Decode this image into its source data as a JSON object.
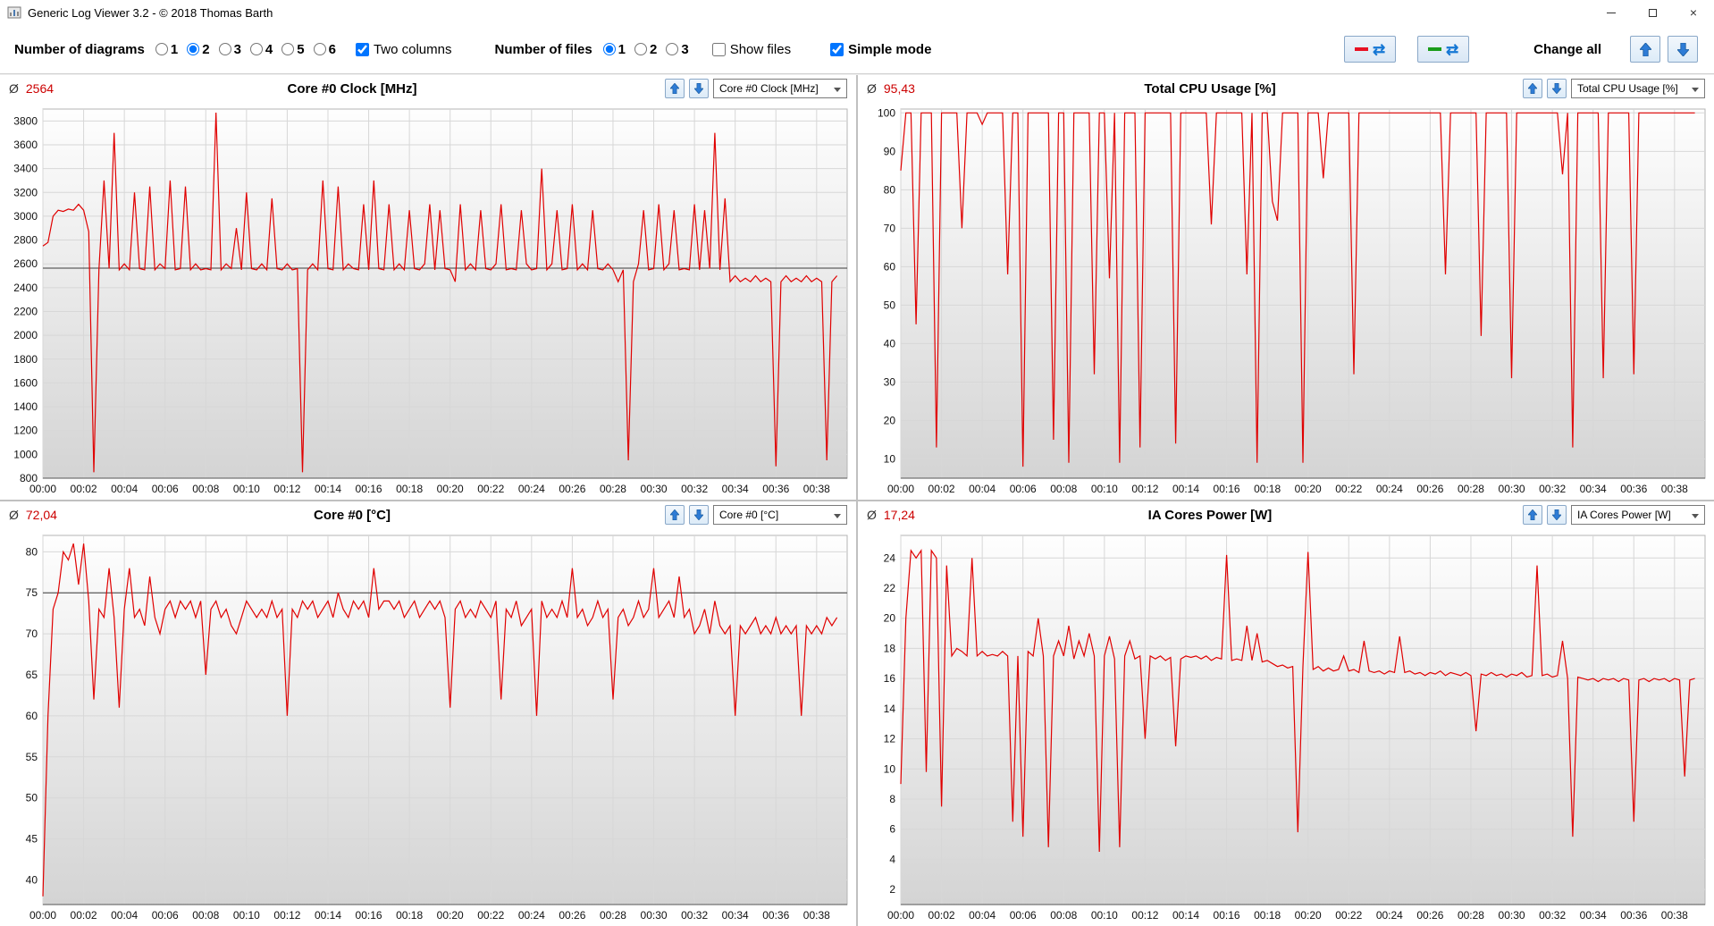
{
  "window": {
    "title": "Generic Log Viewer 3.2 - © 2018 Thomas Barth",
    "minimize_glyph": "–",
    "close_glyph": "×"
  },
  "toolbar": {
    "diagrams_label": "Number of diagrams",
    "diagram_options": [
      "1",
      "2",
      "3",
      "4",
      "5",
      "6"
    ],
    "diagrams_selected": "2",
    "two_columns_label": "Two columns",
    "two_columns_checked": true,
    "files_label": "Number of files",
    "file_options": [
      "1",
      "2",
      "3"
    ],
    "files_selected": "1",
    "show_files_label": "Show files",
    "show_files_checked": false,
    "simple_mode_label": "Simple mode",
    "simple_mode_checked": true,
    "change_all_label": "Change all",
    "refresh_glyph": "⇄"
  },
  "panel": {
    "avg_symbol": "Ø"
  },
  "colors": {
    "line": "#e00000",
    "avg_value": "#cc0000",
    "grid": "#d7d7d7",
    "marker_line": "#3c3c3c",
    "red_dash": "#e81123",
    "green_dash": "#1a9c1a",
    "arrow_blue": "#2e7cd6",
    "arrow_blue_dark": "#1a5c9e",
    "plot_grad_top": "#fefefe",
    "plot_grad_bottom": "#d4d4d4"
  },
  "chart_data": {
    "type": "line",
    "x_axis": {
      "tick_minutes": [
        0,
        2,
        4,
        6,
        8,
        10,
        12,
        14,
        16,
        18,
        20,
        22,
        24,
        26,
        28,
        30,
        32,
        34,
        36,
        38
      ],
      "tick_labels": [
        "00:00",
        "00:02",
        "00:04",
        "00:06",
        "00:08",
        "00:10",
        "00:12",
        "00:14",
        "00:16",
        "00:18",
        "00:20",
        "00:22",
        "00:24",
        "00:26",
        "00:28",
        "00:30",
        "00:32",
        "00:34",
        "00:36",
        "00:38"
      ],
      "range_minutes": [
        0,
        39.5
      ],
      "sample_interval_seconds": 15
    },
    "charts": [
      {
        "id": "core0-clock",
        "title": "Core #0 Clock [MHz]",
        "average_label": "2564",
        "combo_value": "Core #0 Clock [MHz]",
        "ylabel": "MHz",
        "ylim": [
          800,
          3900
        ],
        "yticks": [
          800,
          1000,
          1200,
          1400,
          1600,
          1800,
          2000,
          2200,
          2400,
          2600,
          2800,
          3000,
          3200,
          3400,
          3600,
          3800
        ],
        "marker_line": 2564,
        "values": [
          2750,
          2780,
          3000,
          3050,
          3040,
          3060,
          3050,
          3100,
          3050,
          2870,
          850,
          2550,
          3300,
          2560,
          3700,
          2550,
          2600,
          2550,
          3200,
          2560,
          2550,
          3250,
          2550,
          2600,
          2560,
          3300,
          2550,
          2560,
          3250,
          2550,
          2600,
          2550,
          2560,
          2550,
          3870,
          2550,
          2600,
          2560,
          2900,
          2550,
          3200,
          2560,
          2550,
          2600,
          2550,
          3150,
          2560,
          2550,
          2600,
          2550,
          2560,
          850,
          2550,
          2600,
          2550,
          3300,
          2560,
          2550,
          3250,
          2550,
          2600,
          2560,
          2550,
          3100,
          2550,
          3300,
          2560,
          2550,
          3100,
          2550,
          2600,
          2550,
          3050,
          2560,
          2550,
          2600,
          3100,
          2550,
          3050,
          2560,
          2550,
          2450,
          3100,
          2550,
          2600,
          2550,
          3050,
          2560,
          2550,
          2600,
          3100,
          2550,
          2560,
          2550,
          3050,
          2600,
          2550,
          2560,
          3400,
          2550,
          2600,
          3050,
          2550,
          2560,
          3100,
          2550,
          2600,
          2550,
          3050,
          2560,
          2550,
          2600,
          2550,
          2450,
          2550,
          950,
          2450,
          2600,
          3050,
          2550,
          2560,
          3100,
          2550,
          2600,
          3050,
          2550,
          2560,
          2550,
          3100,
          2550,
          3050,
          2560,
          3700,
          2550,
          3150,
          2450,
          2500,
          2450,
          2480,
          2450,
          2500,
          2450,
          2480,
          2450,
          900,
          2450,
          2500,
          2450,
          2480,
          2450,
          2500,
          2450,
          2480,
          2450,
          950,
          2450,
          2500
        ]
      },
      {
        "id": "total-cpu-usage",
        "title": "Total CPU Usage [%]",
        "average_label": "95,43",
        "combo_value": "Total CPU Usage [%]",
        "ylabel": "%",
        "ylim": [
          5,
          101
        ],
        "yticks": [
          10,
          20,
          30,
          40,
          50,
          60,
          70,
          80,
          90,
          100
        ],
        "marker_line": null,
        "values": [
          85,
          100,
          100,
          45,
          100,
          100,
          100,
          13,
          100,
          100,
          100,
          100,
          70,
          100,
          100,
          100,
          97,
          100,
          100,
          100,
          100,
          58,
          100,
          100,
          8,
          100,
          100,
          100,
          100,
          100,
          15,
          100,
          100,
          9,
          100,
          100,
          100,
          100,
          32,
          100,
          100,
          57,
          100,
          9,
          100,
          100,
          100,
          13,
          100,
          100,
          100,
          100,
          100,
          100,
          14,
          100,
          100,
          100,
          100,
          100,
          100,
          71,
          100,
          100,
          100,
          100,
          100,
          100,
          58,
          100,
          9,
          100,
          100,
          77,
          72,
          100,
          100,
          100,
          100,
          9,
          100,
          100,
          100,
          83,
          100,
          100,
          100,
          100,
          100,
          32,
          100,
          100,
          100,
          100,
          100,
          100,
          100,
          100,
          100,
          100,
          100,
          100,
          100,
          100,
          100,
          100,
          100,
          58,
          100,
          100,
          100,
          100,
          100,
          100,
          42,
          100,
          100,
          100,
          100,
          100,
          31,
          100,
          100,
          100,
          100,
          100,
          100,
          100,
          100,
          100,
          84,
          100,
          13,
          100,
          100,
          100,
          100,
          100,
          31,
          100,
          100,
          100,
          100,
          100,
          32,
          100,
          100,
          100,
          100,
          100,
          100,
          100,
          100,
          100,
          100,
          100,
          100
        ]
      },
      {
        "id": "core0-temp",
        "title": "Core #0 [°C]",
        "average_label": "72,04",
        "combo_value": "Core #0 [°C]",
        "ylabel": "°C",
        "ylim": [
          37,
          82
        ],
        "yticks": [
          40,
          45,
          50,
          55,
          60,
          65,
          70,
          75,
          80
        ],
        "marker_line": 75,
        "values": [
          38,
          60,
          73,
          75,
          80,
          79,
          81,
          76,
          81,
          74,
          62,
          73,
          72,
          78,
          72,
          61,
          73,
          78,
          72,
          73,
          71,
          77,
          72,
          70,
          73,
          74,
          72,
          74,
          73,
          74,
          72,
          74,
          65,
          73,
          74,
          72,
          73,
          71,
          70,
          72,
          74,
          73,
          72,
          73,
          72,
          74,
          72,
          73,
          60,
          73,
          72,
          74,
          73,
          74,
          72,
          73,
          74,
          72,
          75,
          73,
          72,
          74,
          73,
          74,
          72,
          78,
          73,
          74,
          74,
          73,
          74,
          72,
          73,
          74,
          72,
          73,
          74,
          73,
          74,
          72,
          61,
          73,
          74,
          72,
          73,
          72,
          74,
          73,
          72,
          74,
          62,
          73,
          72,
          74,
          71,
          72,
          73,
          60,
          74,
          72,
          73,
          72,
          74,
          72,
          78,
          72,
          73,
          71,
          72,
          74,
          72,
          73,
          62,
          72,
          73,
          71,
          72,
          74,
          72,
          73,
          78,
          72,
          73,
          74,
          72,
          77,
          72,
          73,
          70,
          71,
          73,
          70,
          74,
          71,
          70,
          71,
          60,
          71,
          70,
          71,
          72,
          70,
          71,
          70,
          72,
          70,
          71,
          70,
          71,
          60,
          71,
          70,
          71,
          70,
          72,
          71,
          72
        ]
      },
      {
        "id": "ia-cores-power",
        "title": "IA Cores Power [W]",
        "average_label": "17,24",
        "combo_value": "IA Cores Power [W]",
        "ylabel": "W",
        "ylim": [
          1,
          25.5
        ],
        "yticks": [
          2,
          4,
          6,
          8,
          10,
          12,
          14,
          16,
          18,
          20,
          22,
          24
        ],
        "marker_line": null,
        "values": [
          9,
          20,
          24.5,
          24,
          24.5,
          9.8,
          24.5,
          24,
          7.5,
          23.5,
          17.5,
          18,
          17.8,
          17.5,
          24,
          17.5,
          17.8,
          17.5,
          17.6,
          17.5,
          17.8,
          17.5,
          6.5,
          17.5,
          5.5,
          17.8,
          17.5,
          20,
          17.5,
          4.8,
          17.5,
          18.5,
          17.5,
          19.5,
          17.3,
          18.5,
          17.5,
          19,
          17.5,
          4.5,
          17.5,
          18.8,
          17.3,
          4.8,
          17.5,
          18.5,
          17.3,
          17.5,
          12,
          17.5,
          17.3,
          17.5,
          17.2,
          17.4,
          11.5,
          17.3,
          17.5,
          17.4,
          17.5,
          17.3,
          17.5,
          17.2,
          17.4,
          17.3,
          24.2,
          17.2,
          17.3,
          17.2,
          19.5,
          17.2,
          19,
          17.1,
          17.2,
          17,
          16.8,
          16.9,
          16.7,
          16.8,
          5.8,
          16.8,
          24.4,
          16.6,
          16.8,
          16.5,
          16.7,
          16.5,
          16.6,
          17.5,
          16.5,
          16.6,
          16.4,
          18.5,
          16.5,
          16.4,
          16.5,
          16.3,
          16.5,
          16.4,
          18.8,
          16.4,
          16.5,
          16.3,
          16.4,
          16.2,
          16.4,
          16.3,
          16.5,
          16.2,
          16.4,
          16.3,
          16.2,
          16.4,
          16.2,
          12.5,
          16.3,
          16.2,
          16.4,
          16.2,
          16.3,
          16.1,
          16.3,
          16.2,
          16.4,
          16.1,
          16.2,
          23.5,
          16.2,
          16.3,
          16.1,
          16.2,
          18.5,
          16,
          5.5,
          16.1,
          16,
          15.9,
          16,
          15.8,
          16,
          15.9,
          16,
          15.8,
          16,
          15.9,
          6.5,
          15.9,
          16,
          15.8,
          16,
          15.9,
          16,
          15.8,
          16,
          15.9,
          9.5,
          15.9,
          16
        ]
      }
    ]
  }
}
